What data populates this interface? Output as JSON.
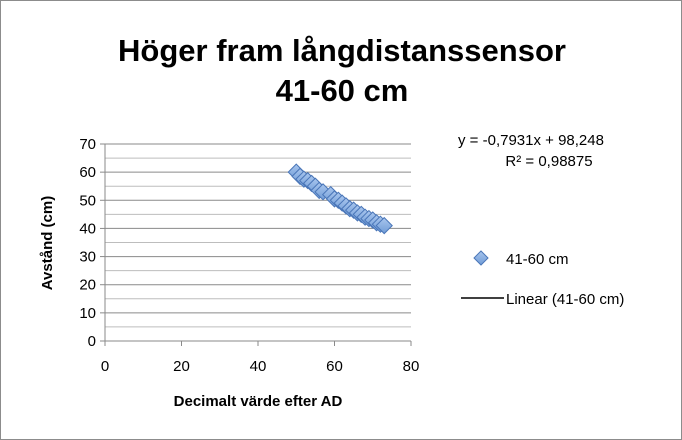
{
  "chart_data": {
    "type": "scatter",
    "title_lines": [
      "Höger fram långdistanssensor",
      "41-60 cm"
    ],
    "xlabel": "Decimalt värde efter AD",
    "ylabel": "Avstånd (cm)",
    "xlim": [
      0,
      80
    ],
    "ylim": [
      0,
      70
    ],
    "x_ticks": [
      "0",
      "20",
      "40",
      "60",
      "80"
    ],
    "y_ticks": [
      "0",
      "10",
      "20",
      "30",
      "40",
      "50",
      "60",
      "70"
    ],
    "grid": "horizontal",
    "legend_position": "right",
    "series": [
      {
        "name": "41-60 cm",
        "marker": "diamond",
        "color": "#6f9bd6",
        "points": [
          {
            "x": 50,
            "y": 60
          },
          {
            "x": 51,
            "y": 58.5
          },
          {
            "x": 52,
            "y": 57.5
          },
          {
            "x": 53,
            "y": 57
          },
          {
            "x": 54,
            "y": 56
          },
          {
            "x": 55,
            "y": 55
          },
          {
            "x": 56,
            "y": 53.5
          },
          {
            "x": 57,
            "y": 53
          },
          {
            "x": 59,
            "y": 52
          },
          {
            "x": 60,
            "y": 50.5
          },
          {
            "x": 61,
            "y": 50
          },
          {
            "x": 62,
            "y": 49
          },
          {
            "x": 63,
            "y": 48
          },
          {
            "x": 64,
            "y": 47
          },
          {
            "x": 65,
            "y": 46.5
          },
          {
            "x": 66,
            "y": 45.5
          },
          {
            "x": 67,
            "y": 45
          },
          {
            "x": 68,
            "y": 44
          },
          {
            "x": 69,
            "y": 43.5
          },
          {
            "x": 70,
            "y": 43
          },
          {
            "x": 71,
            "y": 42
          },
          {
            "x": 72,
            "y": 41.5
          },
          {
            "x": 73,
            "y": 41
          }
        ]
      }
    ],
    "trendline": {
      "name": "Linear (41-60 cm)",
      "slope": -0.7931,
      "intercept": 98.248,
      "x_range": [
        50,
        73
      ],
      "color": "#000000",
      "equation": "y = -0,7931x + 98,248",
      "r_squared": "R² = 0,98875"
    }
  }
}
